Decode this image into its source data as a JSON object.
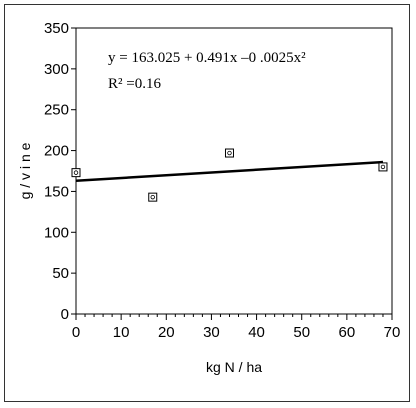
{
  "chart_data": {
    "type": "scatter",
    "xlabel": "kg N / ha",
    "ylabel": "g / v i n e",
    "xlim": [
      0,
      70
    ],
    "ylim": [
      0,
      350
    ],
    "xticks": [
      "0",
      "10",
      "20",
      "30",
      "40",
      "50",
      "60",
      "70"
    ],
    "yticks": [
      "0",
      "50",
      "100",
      "150",
      "200",
      "250",
      "300",
      "350"
    ],
    "points": [
      {
        "x": 0,
        "y": 173
      },
      {
        "x": 17,
        "y": 143
      },
      {
        "x": 34,
        "y": 197
      },
      {
        "x": 68,
        "y": 180
      }
    ],
    "trendline": {
      "x_start": 0,
      "y_start": 163,
      "x_end": 68,
      "y_end": 186
    },
    "equation": "y = 163.025 + 0.491x –0 .0025x²",
    "r_squared": "R² =0.16",
    "grid": false,
    "legend": "none"
  }
}
